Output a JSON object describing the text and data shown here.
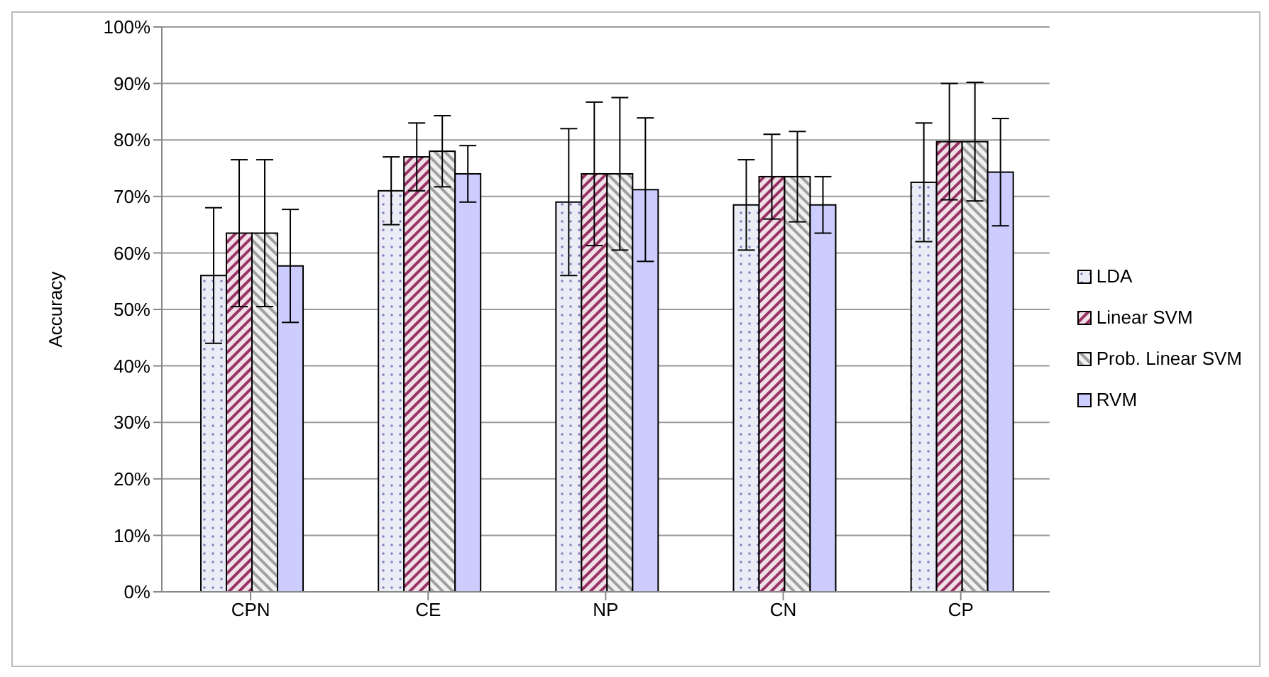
{
  "chart_data": {
    "type": "bar",
    "ylabel": "Accuracy",
    "categories": [
      "CPN",
      "CE",
      "NP",
      "CN",
      "CP"
    ],
    "series": [
      {
        "name": "LDA",
        "color": "#8080c0",
        "values": [
          56,
          71,
          69,
          68.5,
          72.5
        ],
        "errors": [
          12,
          6,
          13,
          8,
          10.5
        ]
      },
      {
        "name": "Linear SVM",
        "color": "#993366",
        "values": [
          63.5,
          77,
          74,
          73.5,
          79.7
        ],
        "errors": [
          13,
          6,
          12.7,
          7.5,
          10.3
        ]
      },
      {
        "name": "Prob. Linear SVM",
        "color": "#a0a0a0",
        "values": [
          63.5,
          78,
          74,
          73.5,
          79.7
        ],
        "errors": [
          13,
          6.3,
          13.5,
          8,
          10.5
        ]
      },
      {
        "name": "RVM",
        "color": "#ccccff",
        "values": [
          57.7,
          74,
          71.2,
          68.5,
          74.3
        ],
        "errors": [
          10,
          5,
          12.7,
          5,
          9.5
        ]
      }
    ],
    "ylim": [
      0,
      100
    ],
    "yticks": [
      {
        "value": 0,
        "label": "0%"
      },
      {
        "value": 10,
        "label": "10%"
      },
      {
        "value": 20,
        "label": "20%"
      },
      {
        "value": 30,
        "label": "30%"
      },
      {
        "value": 40,
        "label": "40%"
      },
      {
        "value": 50,
        "label": "50%"
      },
      {
        "value": 60,
        "label": "60%"
      },
      {
        "value": 70,
        "label": "70%"
      },
      {
        "value": 80,
        "label": "80%"
      },
      {
        "value": 90,
        "label": "90%"
      },
      {
        "value": 100,
        "label": "100%"
      }
    ],
    "grid": "y",
    "legend": "right"
  }
}
